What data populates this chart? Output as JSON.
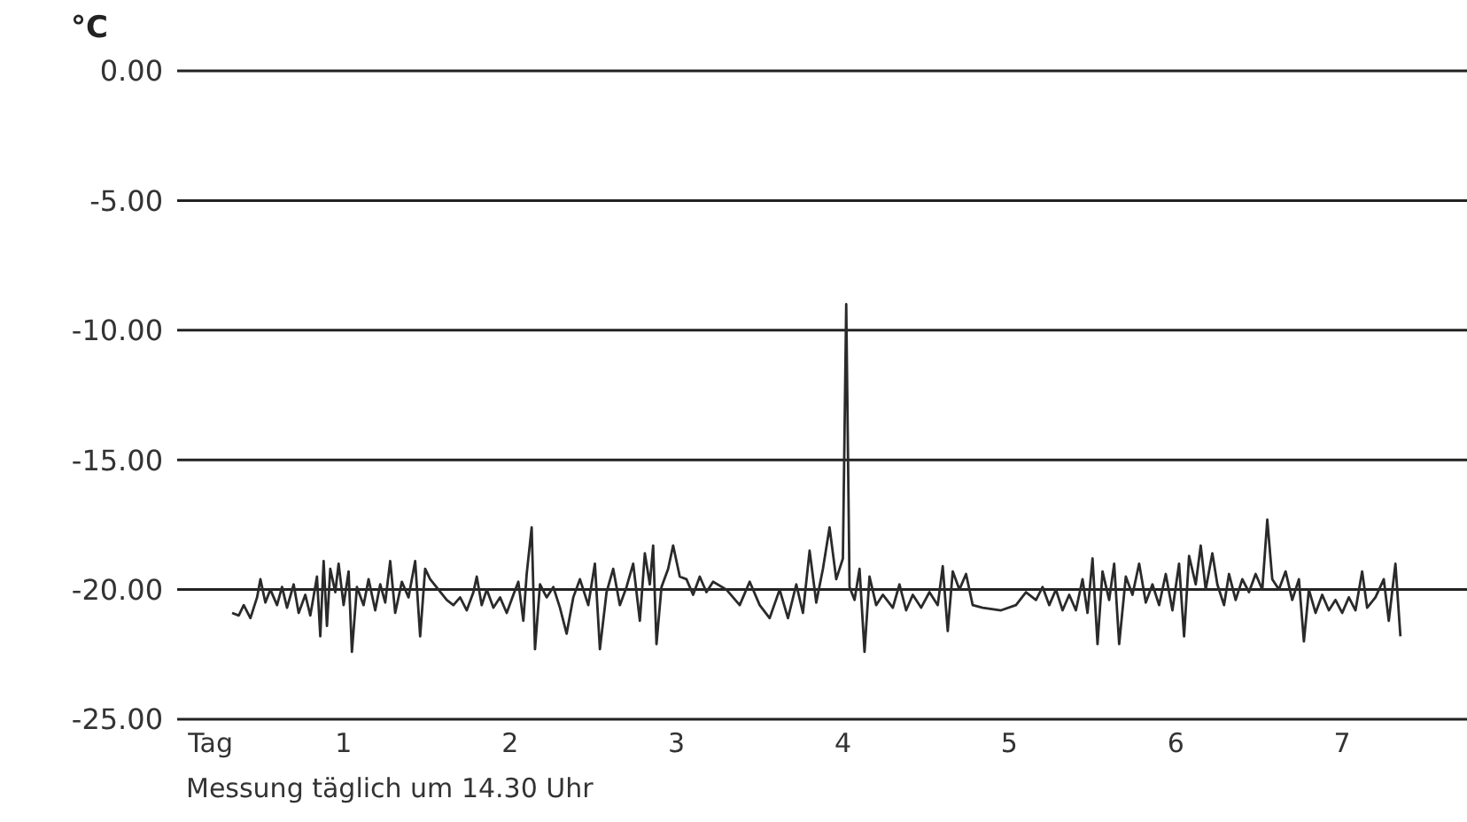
{
  "chart_data": {
    "type": "line",
    "ylabel": "°C",
    "annotations": [
      "Messung täglich um 14.30 Uhr"
    ],
    "xlim": [
      0,
      7.75
    ],
    "xticks": [
      {
        "value": 0.2,
        "label": "Tag"
      },
      1,
      2,
      3,
      4,
      5,
      6,
      7
    ],
    "ylim": [
      -25,
      0
    ],
    "yticks": [
      {
        "value": 0,
        "label": "0.00"
      },
      {
        "value": -5,
        "label": "-5.00"
      },
      {
        "value": -10,
        "label": "-10.00"
      },
      {
        "value": -15,
        "label": "-15.00"
      },
      {
        "value": -20,
        "label": "-20.00"
      },
      {
        "value": -25,
        "label": "-25.00"
      }
    ],
    "grid": "y",
    "marker": "none",
    "line_style": "solid",
    "series": [
      {
        "color": "#2a2a2a",
        "x": [
          0.33,
          0.37,
          0.4,
          0.44,
          0.48,
          0.5,
          0.53,
          0.56,
          0.6,
          0.63,
          0.66,
          0.7,
          0.73,
          0.77,
          0.8,
          0.84,
          0.86,
          0.88,
          0.9,
          0.92,
          0.95,
          0.97,
          1.0,
          1.03,
          1.05,
          1.08,
          1.12,
          1.15,
          1.19,
          1.22,
          1.25,
          1.28,
          1.31,
          1.35,
          1.39,
          1.43,
          1.46,
          1.49,
          1.52,
          1.57,
          1.62,
          1.66,
          1.7,
          1.74,
          1.78,
          1.8,
          1.83,
          1.86,
          1.9,
          1.94,
          1.98,
          2.02,
          2.05,
          2.08,
          2.1,
          2.13,
          2.15,
          2.18,
          2.22,
          2.26,
          2.3,
          2.34,
          2.38,
          2.42,
          2.47,
          2.51,
          2.54,
          2.58,
          2.62,
          2.66,
          2.7,
          2.74,
          2.78,
          2.81,
          2.84,
          2.86,
          2.88,
          2.91,
          2.95,
          2.98,
          3.02,
          3.06,
          3.1,
          3.14,
          3.18,
          3.22,
          3.3,
          3.38,
          3.44,
          3.5,
          3.56,
          3.62,
          3.67,
          3.72,
          3.76,
          3.8,
          3.84,
          3.88,
          3.92,
          3.96,
          4.0,
          4.02,
          4.04,
          4.07,
          4.1,
          4.13,
          4.16,
          4.2,
          4.24,
          4.3,
          4.34,
          4.38,
          4.42,
          4.47,
          4.52,
          4.57,
          4.6,
          4.63,
          4.66,
          4.7,
          4.74,
          4.78,
          4.84,
          4.95,
          5.04,
          5.1,
          5.16,
          5.2,
          5.24,
          5.28,
          5.32,
          5.36,
          5.4,
          5.44,
          5.47,
          5.5,
          5.53,
          5.56,
          5.6,
          5.63,
          5.66,
          5.7,
          5.74,
          5.78,
          5.82,
          5.86,
          5.9,
          5.94,
          5.98,
          6.02,
          6.05,
          6.08,
          6.12,
          6.15,
          6.18,
          6.22,
          6.25,
          6.29,
          6.32,
          6.36,
          6.4,
          6.44,
          6.48,
          6.52,
          6.55,
          6.58,
          6.62,
          6.66,
          6.7,
          6.74,
          6.77,
          6.8,
          6.84,
          6.88,
          6.92,
          6.96,
          7.0,
          7.04,
          7.08,
          7.12,
          7.15,
          7.2,
          7.25,
          7.28,
          7.32,
          7.35
        ],
        "values": [
          -20.9,
          -21.0,
          -20.6,
          -21.1,
          -20.3,
          -19.6,
          -20.5,
          -20.0,
          -20.6,
          -19.9,
          -20.7,
          -19.8,
          -20.9,
          -20.2,
          -21.0,
          -19.5,
          -21.8,
          -18.9,
          -21.4,
          -19.2,
          -20.1,
          -19.0,
          -20.6,
          -19.3,
          -22.4,
          -19.9,
          -20.6,
          -19.6,
          -20.8,
          -19.8,
          -20.5,
          -18.9,
          -20.9,
          -19.7,
          -20.3,
          -18.9,
          -21.8,
          -19.2,
          -19.6,
          -20.0,
          -20.4,
          -20.6,
          -20.3,
          -20.8,
          -20.1,
          -19.5,
          -20.6,
          -20.0,
          -20.7,
          -20.3,
          -20.9,
          -20.2,
          -19.7,
          -21.2,
          -19.4,
          -17.6,
          -22.3,
          -19.8,
          -20.3,
          -19.9,
          -20.7,
          -21.7,
          -20.3,
          -19.6,
          -20.6,
          -19.0,
          -22.3,
          -20.1,
          -19.2,
          -20.6,
          -19.9,
          -19.0,
          -21.2,
          -18.6,
          -19.8,
          -18.3,
          -22.1,
          -19.9,
          -19.2,
          -18.3,
          -19.5,
          -19.6,
          -20.2,
          -19.5,
          -20.1,
          -19.7,
          -20.0,
          -20.6,
          -19.7,
          -20.6,
          -21.1,
          -20.0,
          -21.1,
          -19.8,
          -20.9,
          -18.5,
          -20.5,
          -19.2,
          -17.6,
          -19.6,
          -18.8,
          -9.0,
          -19.9,
          -20.4,
          -19.2,
          -22.4,
          -19.5,
          -20.6,
          -20.2,
          -20.7,
          -19.8,
          -20.8,
          -20.2,
          -20.7,
          -20.1,
          -20.6,
          -19.1,
          -21.6,
          -19.3,
          -20.0,
          -19.4,
          -20.6,
          -20.7,
          -20.8,
          -20.6,
          -20.1,
          -20.4,
          -19.9,
          -20.6,
          -20.0,
          -20.8,
          -20.2,
          -20.8,
          -19.6,
          -20.9,
          -18.8,
          -22.1,
          -19.3,
          -20.4,
          -19.0,
          -22.1,
          -19.5,
          -20.2,
          -19.0,
          -20.5,
          -19.8,
          -20.6,
          -19.4,
          -20.8,
          -19.0,
          -21.8,
          -18.7,
          -19.8,
          -18.3,
          -20.0,
          -18.6,
          -19.8,
          -20.6,
          -19.4,
          -20.4,
          -19.6,
          -20.1,
          -19.4,
          -20.0,
          -17.3,
          -19.6,
          -20.0,
          -19.3,
          -20.4,
          -19.6,
          -22.0,
          -20.0,
          -20.9,
          -20.2,
          -20.8,
          -20.4,
          -20.9,
          -20.3,
          -20.8,
          -19.3,
          -20.7,
          -20.3,
          -19.6,
          -21.2,
          -19.0,
          -21.8
        ]
      }
    ]
  }
}
